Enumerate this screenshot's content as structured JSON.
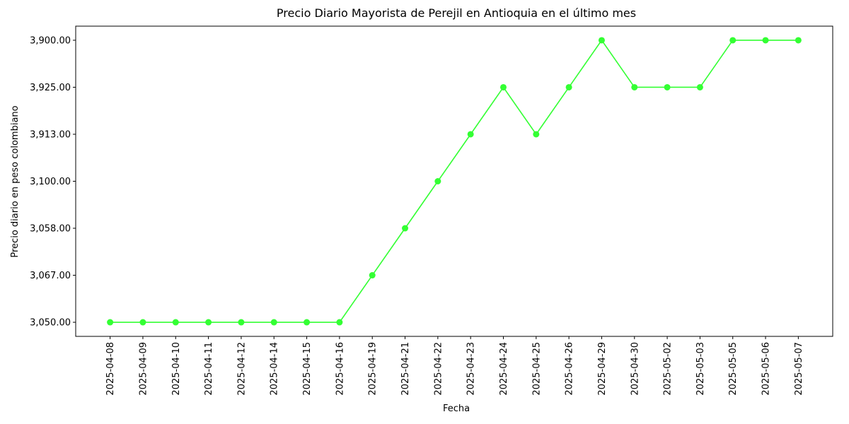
{
  "chart_data": {
    "type": "line",
    "title": "Precio Diario Mayorista de Perejil en Antioquia en el último mes",
    "x_label": "Fecha",
    "y_label": "Precio diario en peso colombiano",
    "categories": [
      "2025-04-08",
      "2025-04-09",
      "2025-04-10",
      "2025-04-11",
      "2025-04-12",
      "2025-04-14",
      "2025-04-15",
      "2025-04-16",
      "2025-04-19",
      "2025-04-21",
      "2025-04-22",
      "2025-04-23",
      "2025-04-24",
      "2025-04-25",
      "2025-04-26",
      "2025-04-29",
      "2025-04-30",
      "2025-05-02",
      "2025-05-03",
      "2025-05-05",
      "2025-05-06",
      "2025-05-07"
    ],
    "y_categories": [
      "3,050.00",
      "3,067.00",
      "3,058.00",
      "3,100.00",
      "3,913.00",
      "3,925.00",
      "3,900.00"
    ],
    "series": [
      {
        "color": "#33ff33",
        "values": [
          "3,050.00",
          "3,050.00",
          "3,050.00",
          "3,050.00",
          "3,050.00",
          "3,050.00",
          "3,050.00",
          "3,050.00",
          "3,067.00",
          "3,058.00",
          "3,100.00",
          "3,913.00",
          "3,925.00",
          "3,913.00",
          "3,925.00",
          "3,900.00",
          "3,925.00",
          "3,925.00",
          "3,925.00",
          "3,900.00",
          "3,900.00",
          "3,900.00"
        ]
      }
    ]
  }
}
